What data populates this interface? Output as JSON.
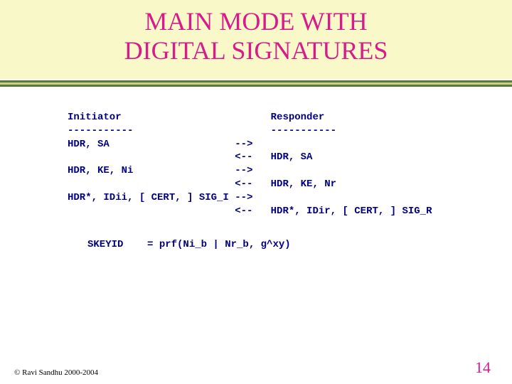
{
  "title_line1": "MAIN MODE WITH",
  "title_line2": "DIGITAL SIGNATURES",
  "colors": {
    "header_bg": "#f8f8c8",
    "title_color": "#d81b8c",
    "mono_color": "#000080",
    "page_color": "#d81b8c",
    "rule_top": "#5a7a3a",
    "rule_mid": "#c8d088",
    "rule_bot": "#5a7a3a"
  },
  "protocol": {
    "initiator_hdr": "Initiator",
    "responder_hdr": "Responder",
    "dash_i": "-----------",
    "dash_r": "-----------",
    "lines": [
      {
        "left": "HDR, SA",
        "arrow": "-->",
        "right": ""
      },
      {
        "left": "",
        "arrow": "<--",
        "right": "HDR, SA"
      },
      {
        "left": "HDR, KE, Ni",
        "arrow": "-->",
        "right": ""
      },
      {
        "left": "",
        "arrow": "<--",
        "right": "HDR, KE, Nr"
      },
      {
        "left": "HDR*, IDii, [ CERT, ] SIG_I",
        "arrow": "-->",
        "right": ""
      },
      {
        "left": "",
        "arrow": "<--",
        "right": "HDR*, IDir, [ CERT, ] SIG_R"
      }
    ],
    "skeyid": "SKEYID    = prf(Ni_b | Nr_b, g^xy)"
  },
  "footer": {
    "copyright": "© Ravi Sandhu 2000-2004",
    "page": "14"
  }
}
